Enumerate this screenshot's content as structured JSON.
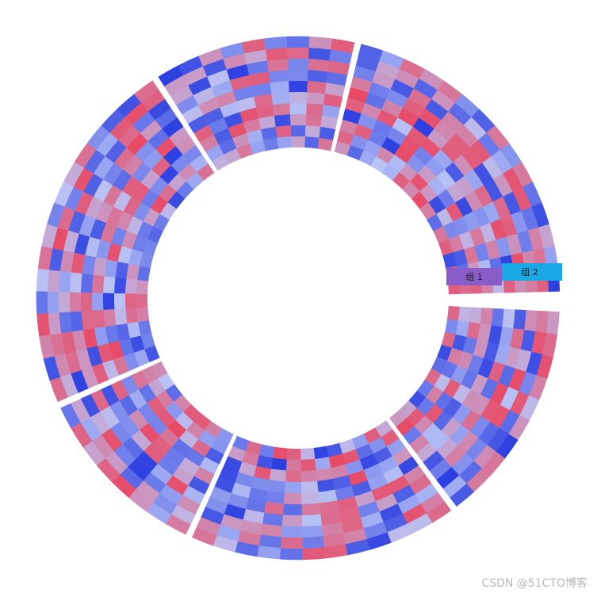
{
  "chart_data": {
    "type": "heatmap",
    "layout": "circular",
    "tracks": [
      {
        "label": "组 1",
        "color": "#8a5cc8",
        "rows": 5
      },
      {
        "label": "组 2",
        "color": "#1aa8e6",
        "rows": 5
      }
    ],
    "sectors": [
      {
        "columns": 10
      },
      {
        "columns": 12
      },
      {
        "columns": 8
      },
      {
        "columns": 16
      },
      {
        "columns": 9
      },
      {
        "columns": 15
      }
    ],
    "color_scale": {
      "low": "#2b3ee0",
      "mid": "#b9c3f6",
      "high": "#e84a66"
    },
    "legend": "none",
    "grid": false
  },
  "watermark": "CSDN @51CTO博客"
}
